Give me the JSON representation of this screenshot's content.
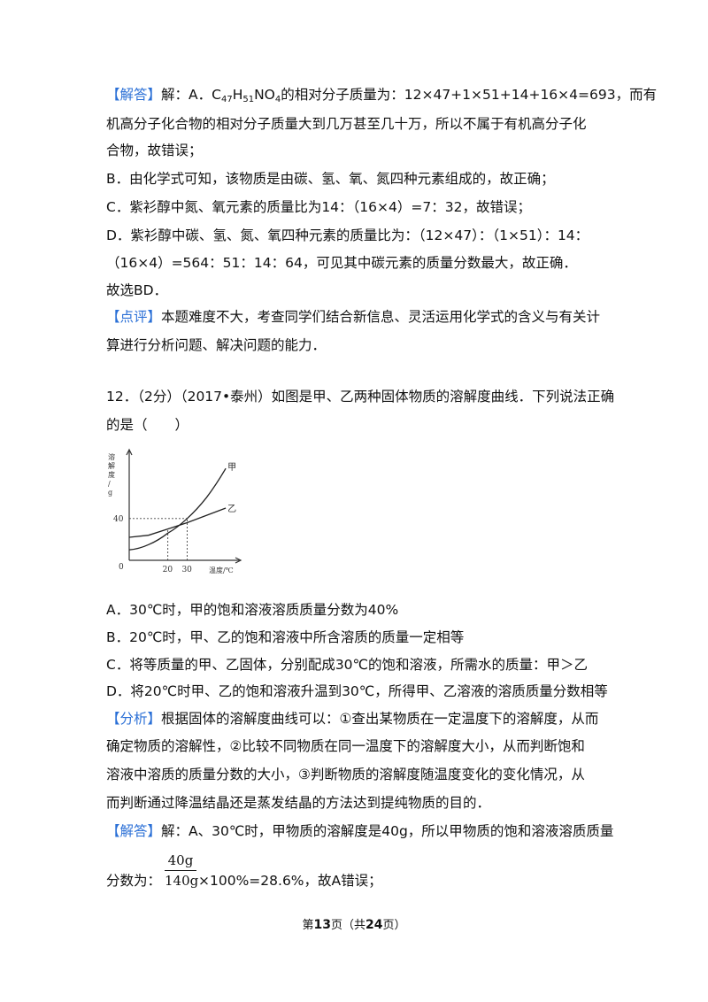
{
  "page": {
    "p1": {
      "tag": "【解答】",
      "t1": "解：A．C",
      "sub1": "47",
      "t2": "H",
      "sub2": "51",
      "t3": "NO",
      "sub3": "4",
      "t4": "的相对分子质量为：12×47+1×51+14+16×4=693，而有"
    },
    "l2": "机高分子化合物的相对分子质量大到几万甚至几十万，所以不属于有机高分子化",
    "l3": "合物，故错误；",
    "l4": "B．由化学式可知，该物质是由碳、氢、氧、氮四种元素组成的，故正确；",
    "l5": "C．紫衫醇中氮、氧元素的质量比为14：（16×4）=7：32，故错误；",
    "l6": "D．紫衫醇中碳、氢、氮、氧四种元素的质量比为：（12×47）：（1×51）：14：",
    "l7": "（16×4）=564：51：14：64，可见其中碳元素的质量分数最大，故正确．",
    "l8": "故选BD．",
    "comment_tag": "【点评】",
    "l9": "本题难度不大，考查同学们结合新信息、灵活运用化学式的含义与有关计",
    "l10": "算进行分析问题、解决问题的能力．",
    "q12_1": "12．（2分）（2017•泰州）如图是甲、乙两种固体物质的溶解度曲线．下列说法正确",
    "q12_2": "的是（　　）",
    "optA": "A．30℃时，甲的饱和溶液溶质质量分数为40%",
    "optB": "B．20℃时，甲、乙的饱和溶液中所含溶质的质量一定相等",
    "optC": "C．将等质量的甲、乙固体，分别配成30℃的饱和溶液，所需水的质量：甲＞乙",
    "optD": "D．将20℃时甲、乙的饱和溶液升温到30℃，所得甲、乙溶液的溶质质量分数相等",
    "analysis_tag": "【分析】",
    "a1": "根据固体的溶解度曲线可以：①查出某物质在一定温度下的溶解度，从而",
    "a2": "确定物质的溶解性，②比较不同物质在同一温度下的溶解度大小，从而判断饱和",
    "a3": "溶液中溶质的质量分数的大小，③判断物质的溶解度随温度变化的变化情况，从",
    "a4": "而判断通过降温结晶还是蒸发结晶的方法达到提纯物质的目的．",
    "answer_tag": "【解答】",
    "s1": "解：A、30℃时，甲物质的溶解度是40g，所以甲物质的饱和溶液溶质质量",
    "s2_pre": "分数为：",
    "frac_num": "40g",
    "frac_den": "140g",
    "s2_post": "×100%=28.6%，故A错误；",
    "footer": {
      "pre": "第",
      "page": "13",
      "mid": "页（共",
      "total": "24",
      "post": "页）"
    }
  },
  "chart_data": {
    "type": "line",
    "ylabel": "溶解度/g",
    "xlabel": "温度/℃",
    "origin_label": "0",
    "x_ticks": [
      "20",
      "30"
    ],
    "y_ticks": [
      "40"
    ],
    "series": [
      {
        "name": "甲",
        "x": [
          0,
          10,
          20,
          30,
          40,
          50
        ],
        "y": [
          10,
          15,
          26,
          40,
          60,
          88
        ]
      },
      {
        "name": "乙",
        "x": [
          0,
          10,
          20,
          30,
          40,
          50
        ],
        "y": [
          22,
          24,
          30,
          36,
          43,
          50
        ]
      }
    ],
    "xlim": [
      0,
      55
    ],
    "ylim": [
      0,
      100
    ]
  }
}
